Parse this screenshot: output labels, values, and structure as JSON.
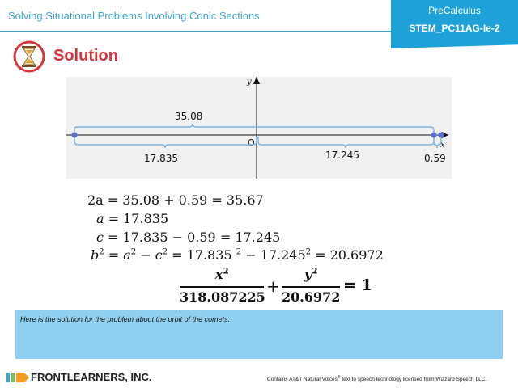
{
  "header": {
    "title": "Solving Situational Problems Involving Conic Sections",
    "subject": "PreCalculus",
    "code": "STEM_PC11AG-Ie-2",
    "accent_color": "#1da1d8"
  },
  "section": {
    "heading": "Solution",
    "icon": "hourglass-icon",
    "heading_color": "#d6343d"
  },
  "figure": {
    "y_axis_label": "y",
    "x_axis_label": "x",
    "origin_label": "O",
    "total_length": "35.08",
    "left_segment": "17.835",
    "right_segment": "17.245",
    "small_gap": "0.59"
  },
  "equations": {
    "line1_lhs": "2a",
    "line1_rhs": " = 35.08 + 0.59 = 35.67",
    "line2_lhs": "a",
    "line2_rhs": " = 17.835",
    "line3_lhs": "c",
    "line3_rhs": " = 17.835 − 0.59 = 17.245",
    "line4_lhs": "b",
    "line4_mid": " = ",
    "line4_rhs": " = 17.835 ",
    "line4_tail": " − 17.245",
    "line4_end": " = 20.6972",
    "frac1_num": "x",
    "frac1_den": "318.087225",
    "frac2_num": "y",
    "frac2_den": "20.6972",
    "plus": "+",
    "equals_one": "= 1"
  },
  "note": {
    "text": "Here is the solution for the problem about the orbit of the comets."
  },
  "footer": {
    "brand": "FRONTLEARNERS, INC.",
    "credit_prefix": "Contains AT&T Natural Voices",
    "credit_suffix": " text to speech technology licensed from Wizzard Speech LLC."
  }
}
